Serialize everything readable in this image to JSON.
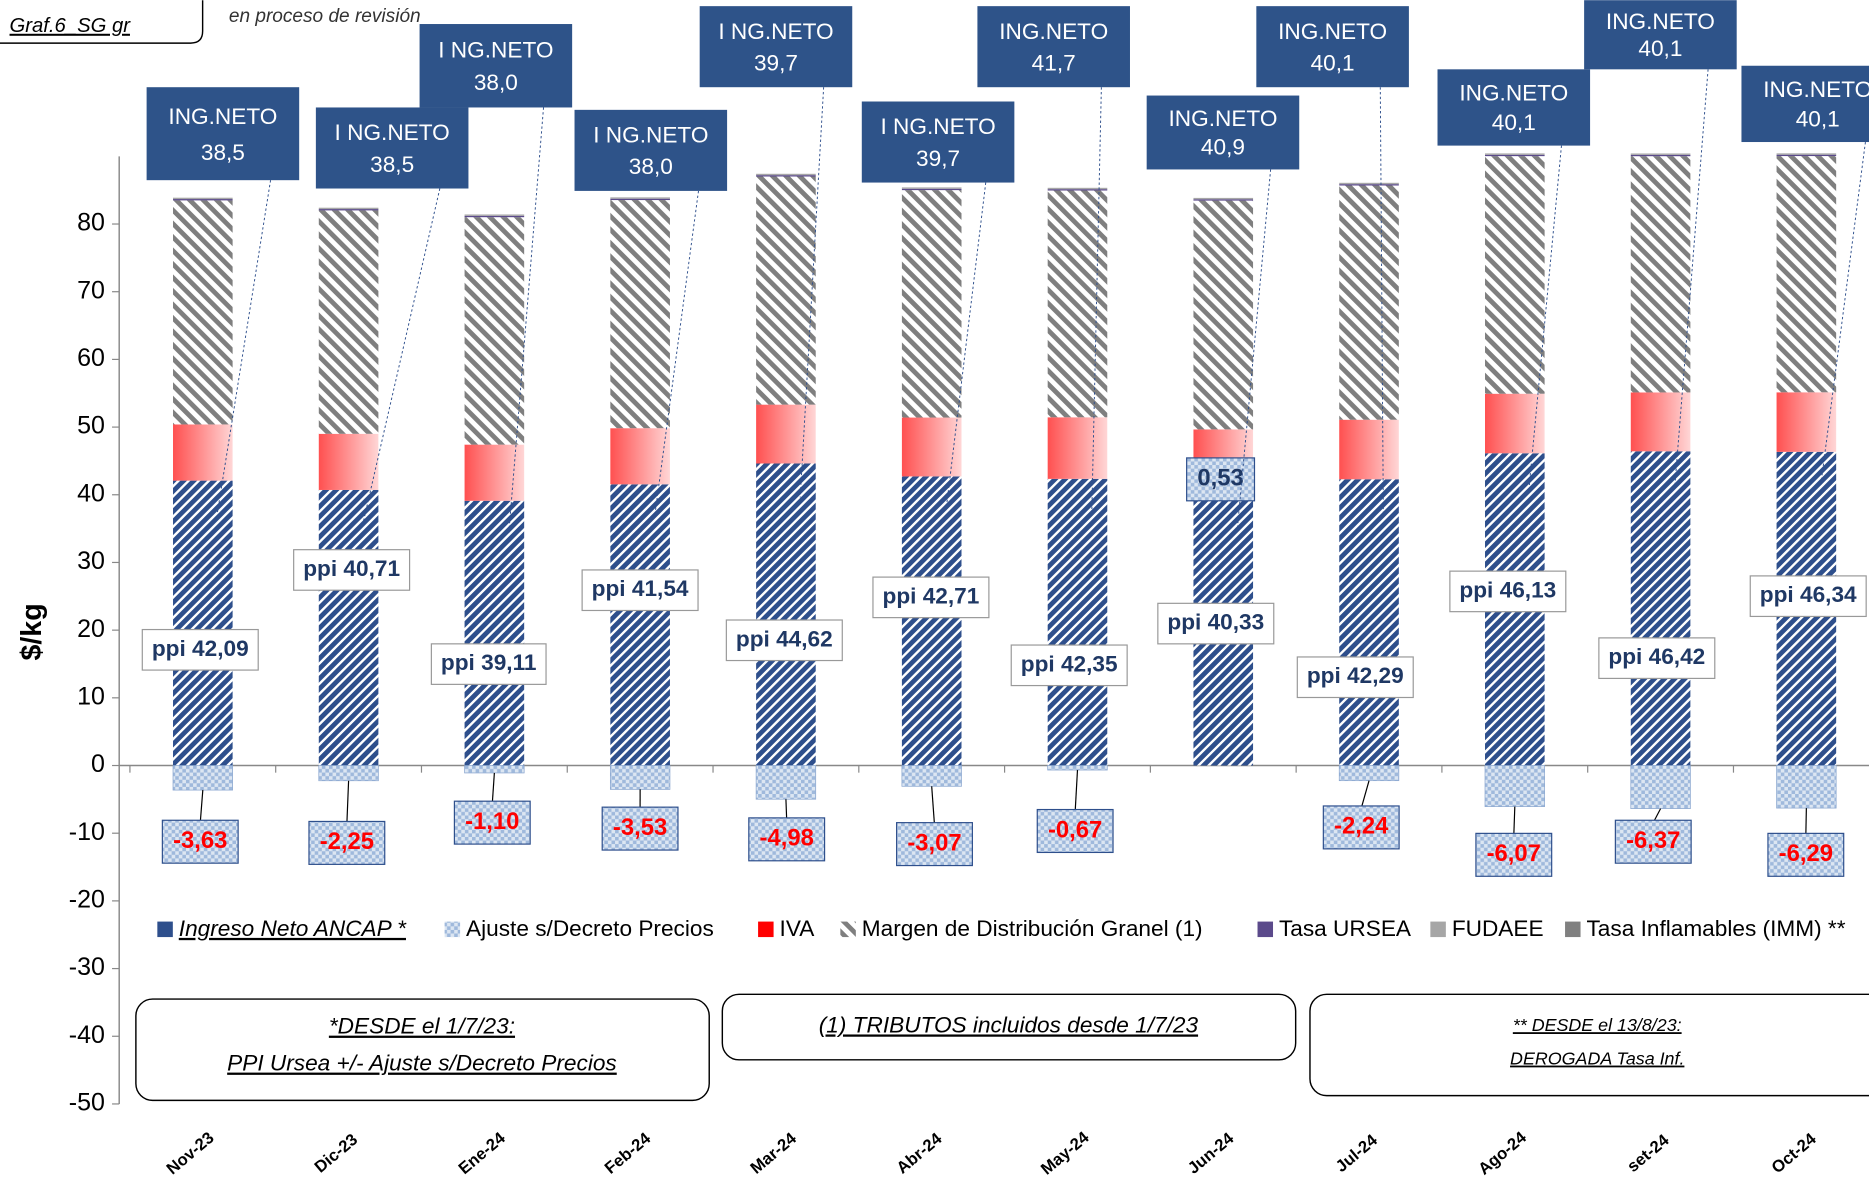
{
  "chart_data": {
    "type": "stacked_bar",
    "title": "Graf.6_SG gr",
    "subtitle": "en proceso de revisión",
    "y_label": "$/kg",
    "categories": [
      "Nov-23",
      "Dic-23",
      "Ene-24",
      "Feb-24",
      "Mar-24",
      "Abr-24",
      "May-24",
      "Jun-24",
      "Jul-24",
      "Ago-24",
      "set-24",
      "Oct-24"
    ],
    "series": [
      {
        "name": "Ingreso Neto ANCAP *",
        "color": "#2e4f8c",
        "values": [
          42.09,
          40.71,
          39.11,
          41.54,
          44.62,
          42.71,
          42.35,
          40.33,
          42.29,
          46.13,
          46.42,
          46.34
        ],
        "value_labels": [
          "ppi  42,09",
          "ppi  40,71",
          "ppi 39,11",
          "ppi 41,54",
          "ppi 44,62",
          "ppi 42,71",
          "ppi 42,35",
          "ppi 40,33",
          "ppi 42,29",
          "ppi 46,13",
          "ppi 46,42",
          "ppi 46,34"
        ]
      },
      {
        "name": "Ajuste s/Decreto Precios",
        "color": "#9fb9dc",
        "values": [
          -3.63,
          -2.25,
          -1.1,
          -3.53,
          -4.98,
          -3.07,
          -0.67,
          0.53,
          -2.24,
          -6.07,
          -6.37,
          -6.29
        ],
        "value_labels": [
          "-3,63",
          "-2,25",
          "-1,10",
          "-3,53",
          "-4,98",
          "-3,07",
          "-0,67",
          "0,53",
          "-2,24",
          "-6,07",
          "-6,37",
          "-6,29"
        ]
      },
      {
        "name": "IVA",
        "color": "#ff0000",
        "values": [
          8.3,
          8.3,
          8.3,
          8.3,
          8.7,
          8.7,
          9.1,
          8.8,
          8.8,
          8.8,
          8.7,
          8.8
        ]
      },
      {
        "name": "Margen de Distribución Granel (1)",
        "color": "#7f7f7f",
        "values": [
          33.1,
          33.0,
          33.6,
          33.7,
          33.7,
          33.6,
          33.5,
          33.8,
          34.6,
          35.1,
          34.9,
          34.9
        ]
      },
      {
        "name": "Tasa URSEA",
        "color": "#5b4a8b",
        "values": [
          0.2,
          0.2,
          0.2,
          0.2,
          0.2,
          0.2,
          0.2,
          0.2,
          0.2,
          0.2,
          0.2,
          0.2
        ]
      },
      {
        "name": "FUDAEE",
        "color": "#a6a6a6",
        "values": [
          0.2,
          0.2,
          0.2,
          0.2,
          0.2,
          0.2,
          0.2,
          0.2,
          0.2,
          0.2,
          0.2,
          0.2
        ]
      },
      {
        "name": "Tasa Inflamables (IMM) **",
        "color": "#808080",
        "values": [
          null,
          null,
          null,
          null,
          null,
          null,
          null,
          null,
          null,
          null,
          null,
          null
        ]
      }
    ],
    "net_labels": [
      "ING.NETO",
      "I NG.NETO",
      "I NG.NETO",
      "I NG.NETO",
      "I NG.NETO",
      "I NG.NETO",
      "ING.NETO",
      "ING.NETO",
      "ING.NETO",
      "ING.NETO",
      "ING.NETO",
      "ING.NETO"
    ],
    "net_values": [
      38.5,
      38.5,
      38.0,
      38.0,
      39.7,
      39.7,
      41.7,
      40.9,
      40.1,
      40.1,
      40.1,
      40.1
    ],
    "net_value_labels": [
      "38,5",
      "38,5",
      "38,0",
      "38,0",
      "39,7",
      "39,7",
      "41,7",
      "40,9",
      "40,1",
      "40,1",
      "40,1",
      "40,1"
    ],
    "ylim": [
      -50,
      90
    ],
    "yticks": [
      -50,
      -40,
      -30,
      -20,
      -10,
      0,
      10,
      20,
      30,
      40,
      50,
      60,
      70,
      80
    ],
    "notes": [
      "*DESDE el 1/7/23:",
      "PPI Ursea +/- Ajuste s/Decreto Precios",
      "(1) TRIBUTOS incluidos desde 1/7/23",
      "** DESDE el 13/8/23:",
      "DEROGADA Tasa Inf."
    ]
  }
}
